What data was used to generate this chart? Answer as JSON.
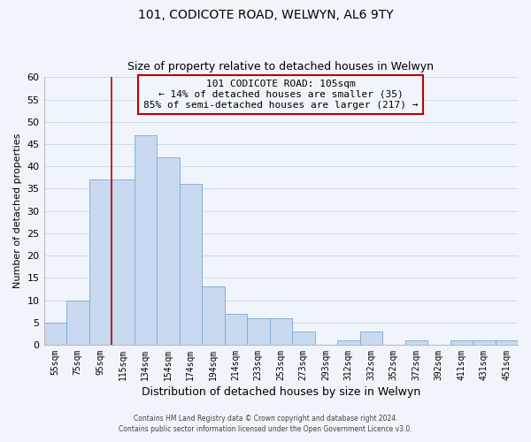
{
  "title": "101, CODICOTE ROAD, WELWYN, AL6 9TY",
  "subtitle": "Size of property relative to detached houses in Welwyn",
  "xlabel": "Distribution of detached houses by size in Welwyn",
  "ylabel": "Number of detached properties",
  "categories": [
    "55sqm",
    "75sqm",
    "95sqm",
    "115sqm",
    "134sqm",
    "154sqm",
    "174sqm",
    "194sqm",
    "214sqm",
    "233sqm",
    "253sqm",
    "273sqm",
    "293sqm",
    "312sqm",
    "332sqm",
    "352sqm",
    "372sqm",
    "392sqm",
    "411sqm",
    "431sqm",
    "451sqm"
  ],
  "values": [
    5,
    10,
    37,
    37,
    47,
    42,
    36,
    13,
    7,
    6,
    6,
    3,
    0,
    1,
    3,
    0,
    1,
    0,
    1,
    1,
    1
  ],
  "bar_color": "#c8d9f0",
  "bar_edge_color": "#7aaad4",
  "grid_color": "#d0dcea",
  "annotation_box_edge": "#bb0000",
  "annotation_line_color": "#bb0000",
  "annotation_text_line1": "101 CODICOTE ROAD: 105sqm",
  "annotation_text_line2": "← 14% of detached houses are smaller (35)",
  "annotation_text_line3": "85% of semi-detached houses are larger (217) →",
  "vline_x_index": 2.5,
  "ylim": [
    0,
    60
  ],
  "yticks": [
    0,
    5,
    10,
    15,
    20,
    25,
    30,
    35,
    40,
    45,
    50,
    55,
    60
  ],
  "footer_line1": "Contains HM Land Registry data © Crown copyright and database right 2024.",
  "footer_line2": "Contains public sector information licensed under the Open Government Licence v3.0.",
  "bg_color": "#f0f4fb",
  "white": "#ffffff"
}
